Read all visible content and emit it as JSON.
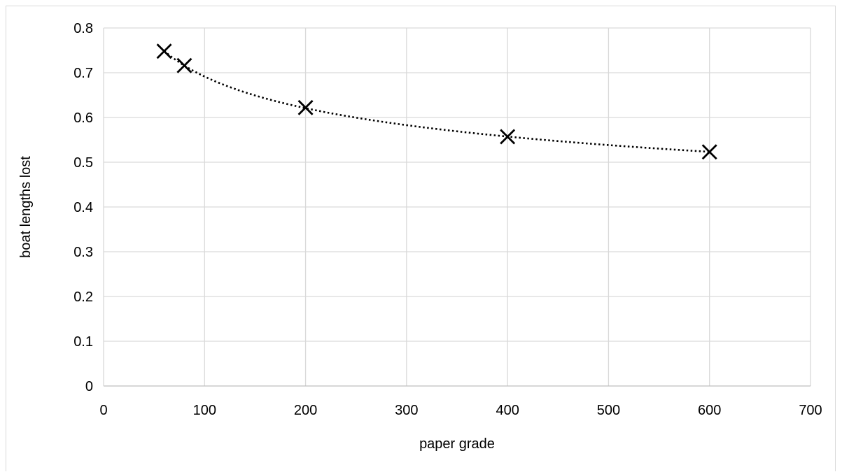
{
  "chart_data": {
    "type": "scatter",
    "title": "",
    "xlabel": "paper grade",
    "ylabel": "boat lengths  lost",
    "xlim": [
      0,
      700
    ],
    "ylim": [
      0,
      0.8
    ],
    "x_ticks": [
      "0",
      "100",
      "200",
      "300",
      "400",
      "500",
      "600",
      "700"
    ],
    "y_ticks": [
      "0",
      "0.1",
      "0.2",
      "0.3",
      "0.4",
      "0.5",
      "0.6",
      "0.7",
      "0.8"
    ],
    "grid": true,
    "legend": "none",
    "marker": "x",
    "trendline": "power, dotted",
    "series": [
      {
        "x": [
          60,
          80,
          200,
          400,
          600
        ],
        "y": [
          0.748,
          0.716,
          0.622,
          0.557,
          0.523
        ]
      }
    ]
  }
}
